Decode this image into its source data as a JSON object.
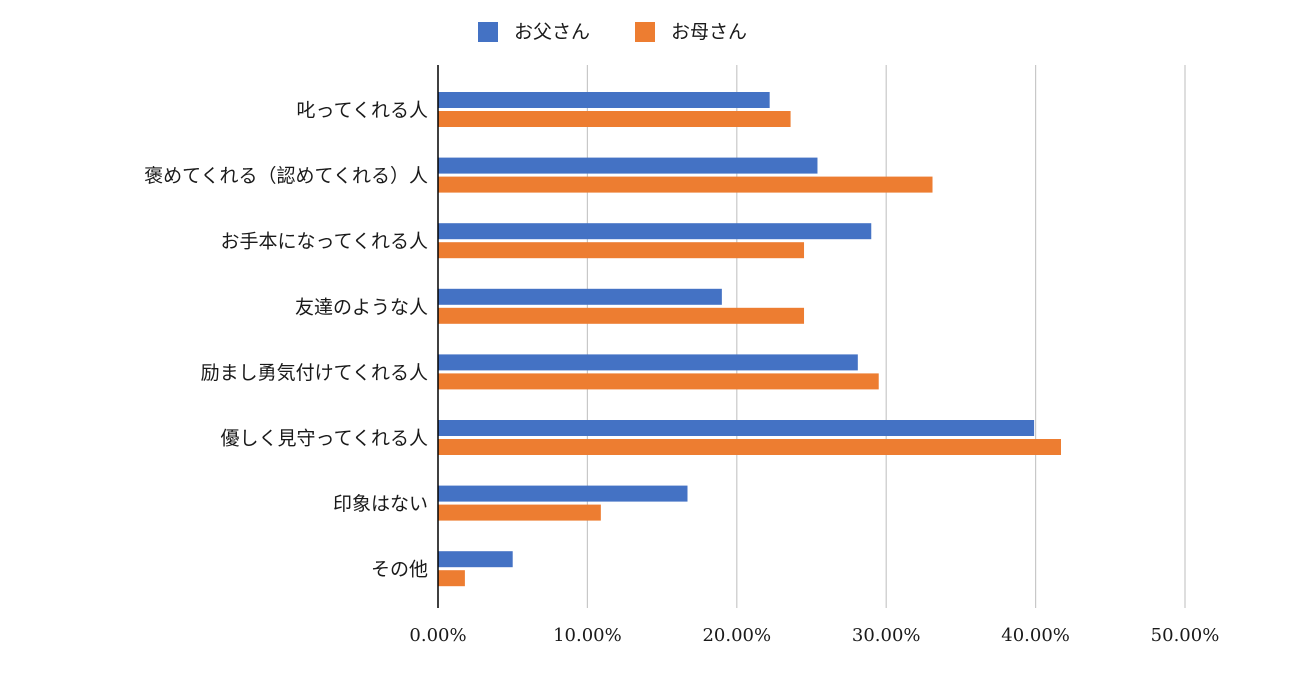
{
  "chart_data": {
    "type": "bar",
    "orientation": "horizontal",
    "categories": [
      "叱ってくれる人",
      "褒めてくれる（認めてくれる）人",
      "お手本になってくれる人",
      "友達のような人",
      "励まし勇気付けてくれる人",
      "優しく見守ってくれる人",
      "印象はない",
      "その他"
    ],
    "series": [
      {
        "name": "お父さん",
        "color": "#4472C4",
        "values": [
          22.2,
          25.4,
          29.0,
          19.0,
          28.1,
          39.9,
          16.7,
          5.0
        ]
      },
      {
        "name": "お母さん",
        "color": "#ED7D31",
        "values": [
          23.6,
          33.1,
          24.5,
          24.5,
          29.5,
          41.7,
          10.9,
          1.8
        ]
      }
    ],
    "xlim": [
      0,
      50
    ],
    "xticks": [
      "0.00%",
      "10.00%",
      "20.00%",
      "30.00%",
      "40.00%",
      "50.00%"
    ],
    "grid": true,
    "legend_position": "top-center",
    "gridline_color": "#c8c8c8",
    "axis_color": "#000000"
  }
}
